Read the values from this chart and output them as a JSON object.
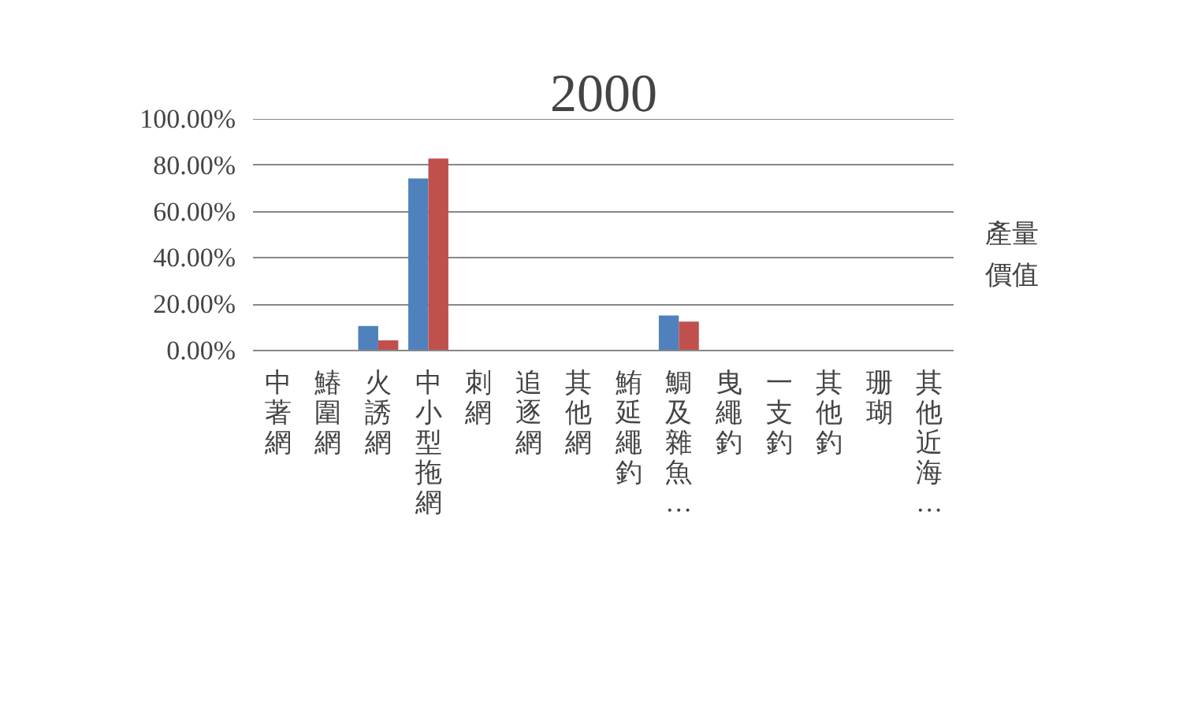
{
  "chart_data": {
    "type": "bar",
    "title": "2000",
    "categories": [
      "中著網",
      "鰆圍網",
      "火誘網",
      "中小型拖網",
      "刺網",
      "追逐網",
      "其他網",
      "鮪延繩釣",
      "鯛及雜魚…",
      "曳繩釣",
      "一支釣",
      "其他釣",
      "珊瑚",
      "其他近海…"
    ],
    "series": [
      {
        "name": "產量",
        "color": "#4f81bd",
        "values": [
          0,
          0,
          10.6,
          74.3,
          0,
          0,
          0,
          0,
          15.1,
          0,
          0,
          0,
          0,
          0
        ]
      },
      {
        "name": "價值",
        "color": "#c0504d",
        "values": [
          0,
          0,
          4.4,
          82.9,
          0,
          0,
          0,
          0,
          12.5,
          0,
          0,
          0,
          0,
          0
        ]
      }
    ],
    "ylim": [
      0,
      100
    ],
    "yticks": [
      {
        "value": 0,
        "label": "0.00%"
      },
      {
        "value": 20,
        "label": "20.00%"
      },
      {
        "value": 40,
        "label": "40.00%"
      },
      {
        "value": 60,
        "label": "60.00%"
      },
      {
        "value": 80,
        "label": "80.00%"
      },
      {
        "value": 100,
        "label": "100.00%"
      }
    ],
    "grid": "y",
    "legend": "right"
  }
}
